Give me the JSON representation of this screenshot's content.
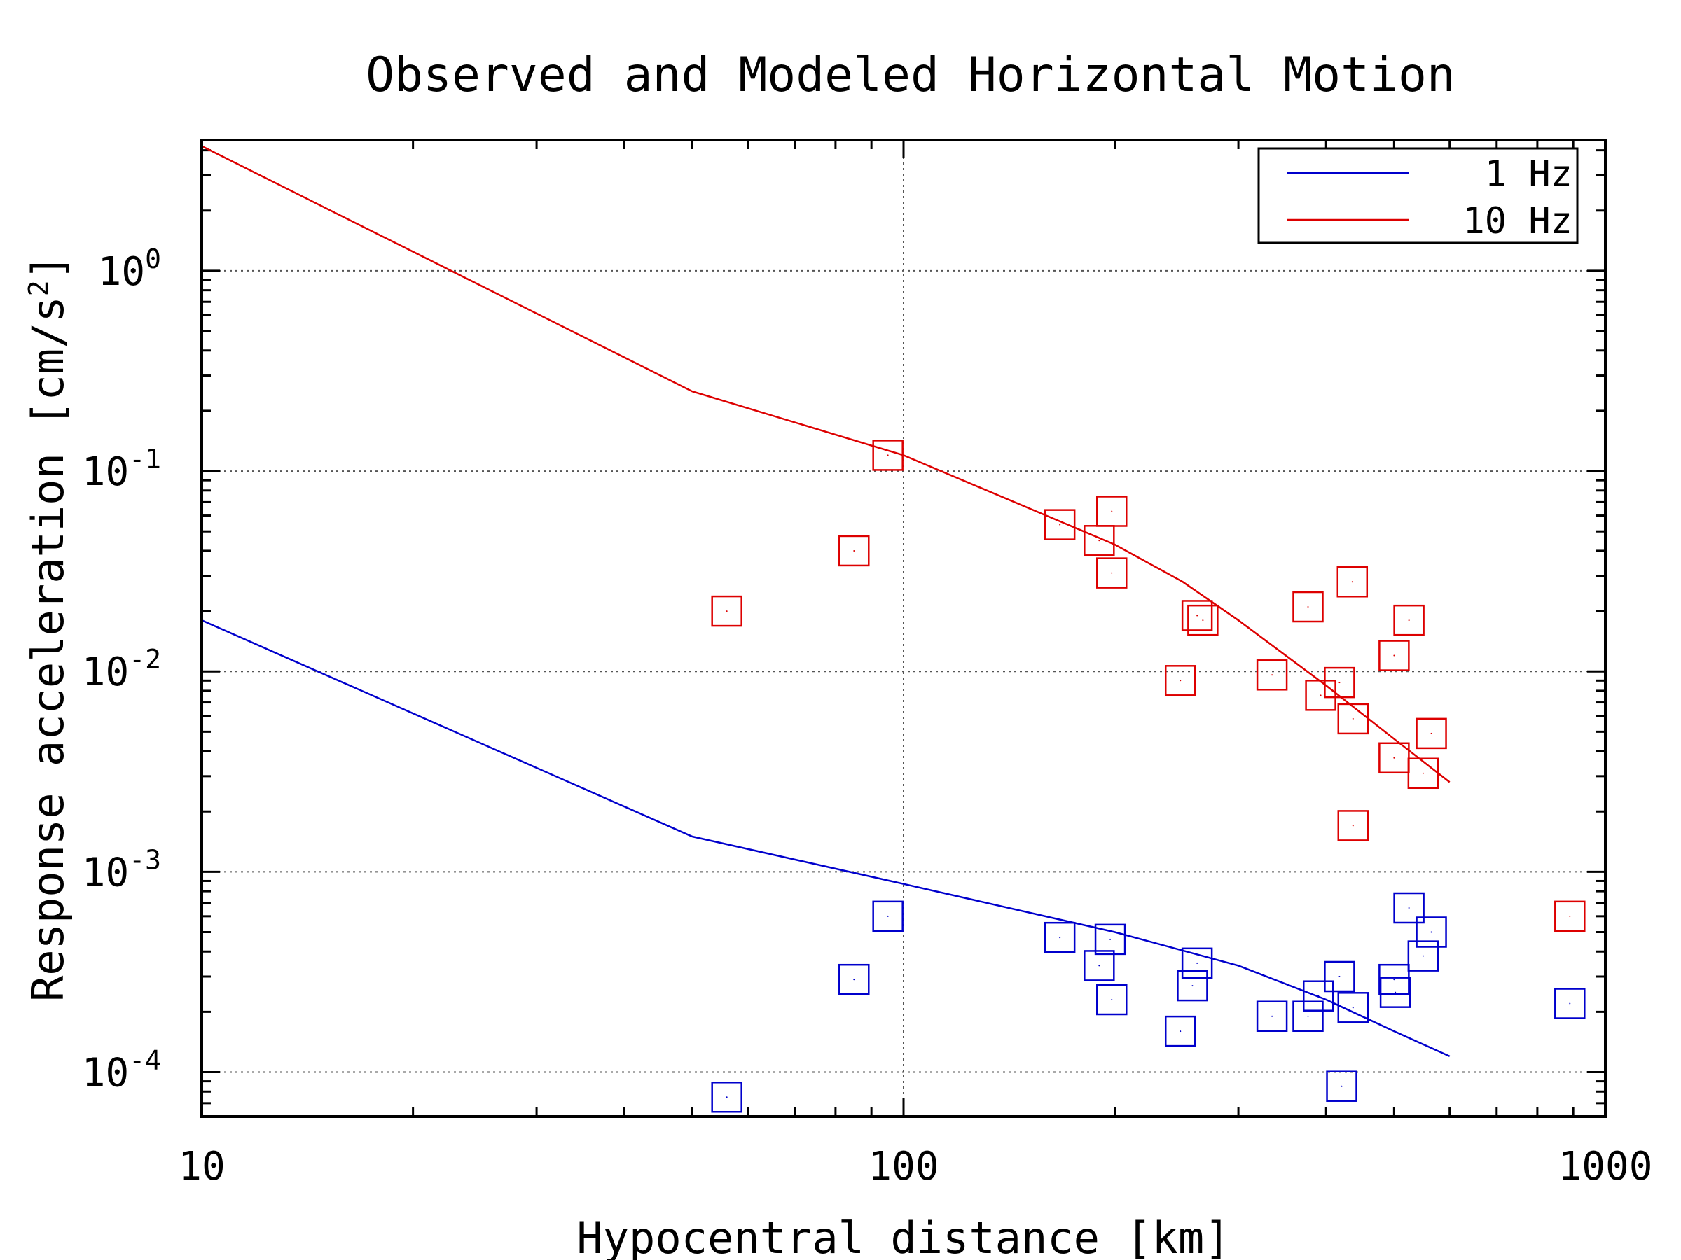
{
  "chart_data": {
    "type": "scatter",
    "title": "Observed and Modeled Horizontal Motion",
    "xlabel": "Hypocentral distance [km]",
    "ylabel": "Response acceleration [cm/s",
    "ylabel_exponent": "2",
    "ylabel_suffix": "]",
    "x_scale": "log",
    "y_scale": "log",
    "xlim": [
      10,
      1000
    ],
    "ylim": [
      6e-05,
      4.5
    ],
    "grid": true,
    "legend_position": "top-right",
    "x_ticks": [
      {
        "value": 10,
        "label": "10"
      },
      {
        "value": 100,
        "label": "100"
      },
      {
        "value": 1000,
        "label": "1000"
      }
    ],
    "y_ticks": [
      {
        "value": 1,
        "base": "10",
        "exp": "0"
      },
      {
        "value": 0.1,
        "base": "10",
        "exp": "-1"
      },
      {
        "value": 0.01,
        "base": "10",
        "exp": "-2"
      },
      {
        "value": 0.001,
        "base": "10",
        "exp": "-3"
      },
      {
        "value": 0.0001,
        "base": "10",
        "exp": "-4"
      }
    ],
    "series": [
      {
        "name": "1 Hz",
        "color": "#0000cc",
        "model_line": {
          "x": [
            10,
            50,
            100,
            200,
            300,
            400,
            500,
            600
          ],
          "y": [
            0.018,
            0.0015,
            0.00087,
            0.0005,
            0.00034,
            0.00023,
            0.00016,
            0.00012
          ]
        },
        "observed": {
          "x": [
            56,
            85,
            95,
            167,
            190,
            197,
            198,
            248,
            258,
            262,
            335,
            377,
            390,
            418,
            421,
            437,
            500,
            502,
            525,
            550,
            565,
            890
          ],
          "y": [
            7.5e-05,
            0.00029,
            0.0006,
            0.00047,
            0.00034,
            0.00046,
            0.00023,
            0.00016,
            0.00027,
            0.00035,
            0.00019,
            0.00019,
            0.00024,
            0.0003,
            8.5e-05,
            0.00021,
            0.00029,
            0.00025,
            0.00066,
            0.00038,
            0.0005,
            0.00022
          ]
        }
      },
      {
        "name": "10 Hz",
        "color": "#dd0000",
        "model_line": {
          "x": [
            10,
            50,
            100,
            200,
            250,
            300,
            400,
            500,
            600
          ],
          "y": [
            4.2,
            0.25,
            0.12,
            0.043,
            0.028,
            0.018,
            0.0085,
            0.0046,
            0.0028
          ]
        },
        "observed": {
          "x": [
            56,
            85,
            95,
            167,
            190,
            198,
            198,
            248,
            262,
            267,
            335,
            377,
            393,
            418,
            436,
            437,
            437,
            500,
            500,
            525,
            550,
            565,
            890
          ],
          "y": [
            0.02,
            0.04,
            0.12,
            0.054,
            0.045,
            0.063,
            0.031,
            0.009,
            0.019,
            0.018,
            0.0096,
            0.021,
            0.0076,
            0.0088,
            0.028,
            0.0058,
            0.0017,
            0.012,
            0.0037,
            0.018,
            0.0031,
            0.0049,
            0.0006
          ]
        }
      }
    ]
  }
}
